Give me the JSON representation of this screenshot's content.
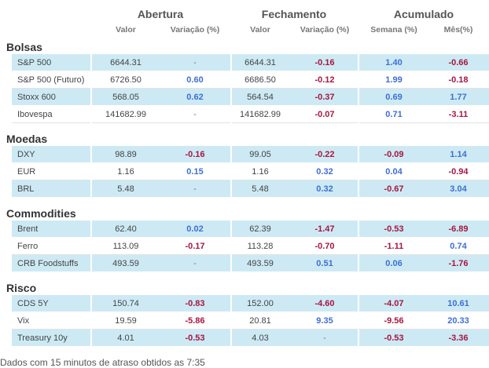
{
  "header": {
    "groups": [
      "Abertura",
      "Fechamento",
      "Acumulado"
    ],
    "columns": [
      "Valor",
      "Variação (%)",
      "Valor",
      "Variação (%)",
      "Semana (%)",
      "Mês(%)"
    ]
  },
  "sections": [
    {
      "title": "Bolsas",
      "rows": [
        [
          "S&P 500",
          "6644.31",
          "-",
          "6644.31",
          "-0.16",
          "1.40",
          "-0.66"
        ],
        [
          "S&P 500 (Futuro)",
          "6726.50",
          "0.60",
          "6686.50",
          "-0.12",
          "1.99",
          "-0.18"
        ],
        [
          "Stoxx 600",
          "568.05",
          "0.62",
          "564.54",
          "-0.37",
          "0.69",
          "1.77"
        ],
        [
          "Ibovespa",
          "141682.99",
          "-",
          "141682.99",
          "-0.07",
          "0.71",
          "-3.11"
        ]
      ]
    },
    {
      "title": "Moedas",
      "rows": [
        [
          "DXY",
          "98.89",
          "-0.16",
          "99.05",
          "-0.22",
          "-0.09",
          "1.14"
        ],
        [
          "EUR",
          "1.16",
          "0.15",
          "1.16",
          "0.32",
          "0.04",
          "-0.94"
        ],
        [
          "BRL",
          "5.48",
          "-",
          "5.48",
          "0.32",
          "-0.67",
          "3.04"
        ]
      ]
    },
    {
      "title": "Commodities",
      "rows": [
        [
          "Brent",
          "62.40",
          "0.02",
          "62.39",
          "-1.47",
          "-0.53",
          "-6.89"
        ],
        [
          "Ferro",
          "113.09",
          "-0.17",
          "113.28",
          "-0.70",
          "-1.11",
          "0.74"
        ],
        [
          "CRB Foodstuffs",
          "493.59",
          "-",
          "493.59",
          "0.51",
          "0.06",
          "-1.76"
        ]
      ]
    },
    {
      "title": "Risco",
      "rows": [
        [
          "CDS 5Y",
          "150.74",
          "-0.83",
          "152.00",
          "-4.60",
          "-4.07",
          "10.61"
        ],
        [
          "Vix",
          "19.59",
          "-5.86",
          "20.81",
          "9.35",
          "-9.56",
          "20.33"
        ],
        [
          "Treasury 10y",
          "4.01",
          "-0.53",
          "4.03",
          "-",
          "-0.53",
          "-3.36"
        ]
      ]
    }
  ],
  "footer": "Dados com 15 minutos de atraso obtidos as 7:35"
}
